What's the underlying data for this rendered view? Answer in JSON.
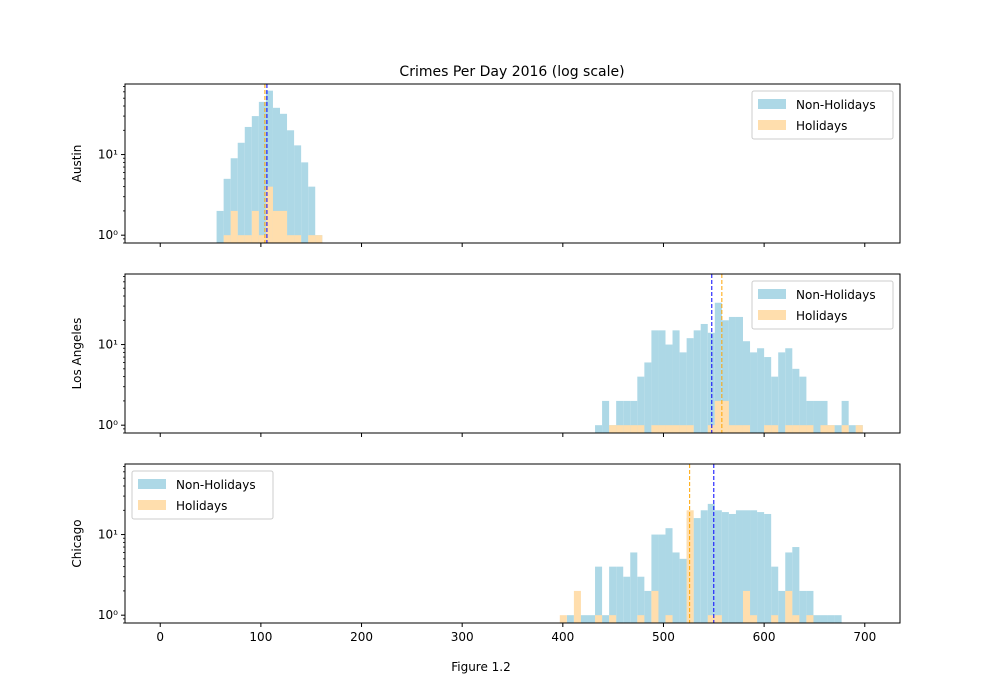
{
  "chart_data": {
    "type": "histogram",
    "title": "Crimes Per Day 2016 (log scale)",
    "xlabel": "Figure 1.2",
    "xlim": [
      -35,
      735
    ],
    "xticks": [
      0,
      100,
      200,
      300,
      400,
      500,
      600,
      700
    ],
    "xtick_labels": [
      "0",
      "100",
      "200",
      "300",
      "400",
      "500",
      "600",
      "700"
    ],
    "y_scale": "log",
    "ylim": [
      0.8,
      75
    ],
    "yticks": [
      1,
      10
    ],
    "ytick_labels": [
      "10⁰",
      "10¹"
    ],
    "bin_width": 7,
    "series_names": [
      "Non-Holidays",
      "Holidays"
    ],
    "colors": {
      "non_holidays": "#add8e6",
      "holidays": "#ffdead",
      "non_holidays_mean_line": "#0000ff",
      "holidays_mean_line": "#ffa500"
    },
    "panels": [
      {
        "ylabel": "Austin",
        "legend_position": "upper right",
        "non_holidays": {
          "bin_starts": [
            56,
            63,
            70,
            77,
            84,
            91,
            98,
            105,
            112,
            119,
            126,
            133,
            140,
            147,
            154
          ],
          "counts": [
            2,
            5,
            9,
            14,
            22,
            30,
            45,
            62,
            38,
            32,
            20,
            13,
            8,
            4,
            1
          ]
        },
        "holidays": {
          "bin_starts": [
            63,
            70,
            77,
            84,
            91,
            98,
            105,
            112,
            119,
            126,
            133,
            147,
            154
          ],
          "counts": [
            1,
            2,
            1,
            1,
            2,
            1,
            4,
            2,
            2,
            1,
            1,
            1,
            1
          ]
        },
        "non_holidays_mean": 106,
        "holidays_mean": 104
      },
      {
        "ylabel": "Los Angeles",
        "legend_position": "upper right",
        "non_holidays": {
          "bin_starts": [
            432,
            439,
            446,
            453,
            460,
            467,
            474,
            481,
            488,
            495,
            502,
            509,
            516,
            523,
            530,
            537,
            544,
            551,
            558,
            565,
            572,
            579,
            586,
            593,
            600,
            607,
            614,
            621,
            628,
            635,
            642,
            649,
            656,
            663,
            670,
            677,
            684,
            691
          ],
          "counts": [
            1,
            2,
            1,
            2,
            2,
            2,
            4,
            6,
            15,
            15,
            10,
            15,
            8,
            12,
            15,
            18,
            14,
            33,
            20,
            22,
            22,
            11,
            8,
            9,
            7,
            4,
            8,
            9,
            5,
            4,
            2,
            2,
            2,
            1,
            1,
            2,
            1,
            1
          ]
        },
        "holidays": {
          "bin_starts": [
            446,
            453,
            460,
            467,
            474,
            488,
            495,
            502,
            509,
            516,
            523,
            544,
            551,
            558,
            565,
            572,
            579,
            600,
            607,
            621,
            628,
            635,
            642,
            656,
            663,
            677,
            691
          ],
          "counts": [
            1,
            1,
            1,
            1,
            1,
            1,
            1,
            1,
            1,
            1,
            1,
            1,
            2,
            2,
            1,
            1,
            1,
            1,
            1,
            1,
            1,
            1,
            1,
            1,
            1,
            1,
            1
          ]
        },
        "non_holidays_mean": 548,
        "holidays_mean": 558
      },
      {
        "ylabel": "Chicago",
        "legend_position": "upper left",
        "non_holidays": {
          "bin_starts": [
            404,
            411,
            418,
            425,
            432,
            439,
            446,
            453,
            460,
            467,
            474,
            481,
            488,
            495,
            502,
            509,
            516,
            523,
            530,
            537,
            544,
            551,
            558,
            565,
            572,
            579,
            586,
            593,
            600,
            607,
            614,
            621,
            628,
            635,
            642,
            649,
            656,
            663,
            670
          ],
          "counts": [
            1,
            1,
            1,
            1,
            4,
            1,
            4,
            4,
            3,
            6,
            3,
            2,
            10,
            10,
            12,
            6,
            5,
            16,
            16,
            20,
            24,
            20,
            19,
            18,
            20,
            20,
            20,
            19,
            18,
            4,
            2,
            6,
            7,
            2,
            2,
            1,
            1,
            1,
            1
          ]
        },
        "holidays": {
          "bin_starts": [
            397,
            411,
            432,
            446,
            474,
            488,
            502,
            523,
            544,
            551,
            579,
            586,
            607,
            621,
            628,
            642
          ],
          "counts": [
            1,
            2,
            1,
            1,
            1,
            2,
            1,
            20,
            1,
            1,
            2,
            1,
            1,
            2,
            1,
            1
          ]
        },
        "non_holidays_mean": 550,
        "holidays_mean": 526
      }
    ]
  }
}
